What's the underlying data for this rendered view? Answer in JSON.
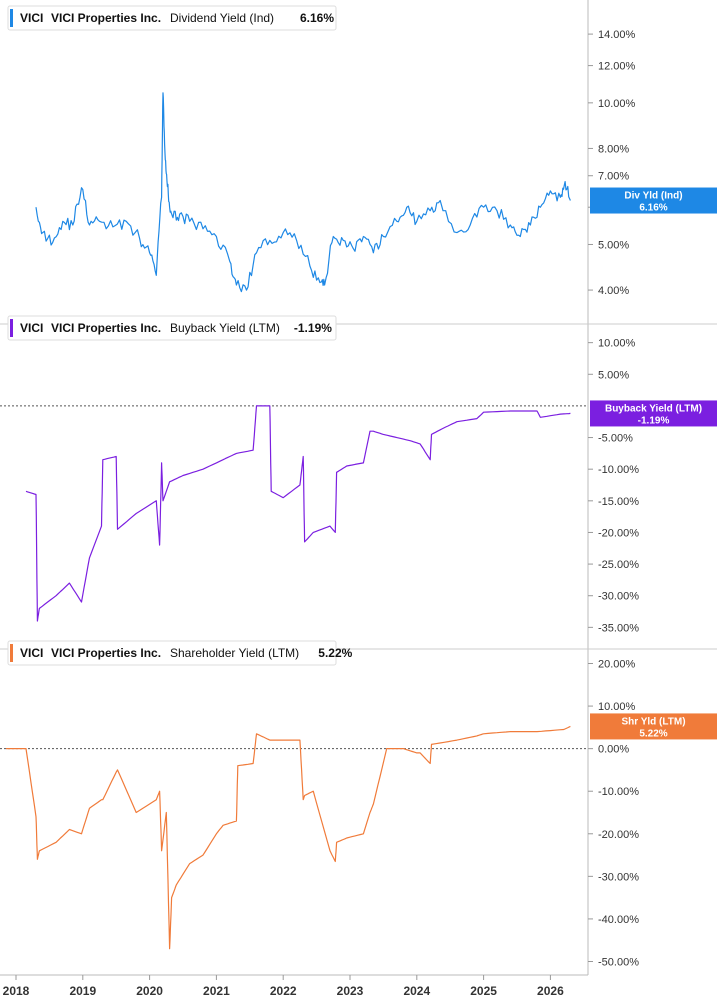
{
  "colors": {
    "div": "#1e88e5",
    "buyback": "#7b1fe0",
    "shareholder": "#f07b3a",
    "axis": "#bbbbbb"
  },
  "x_axis": {
    "labels": [
      "2018",
      "2019",
      "2020",
      "2021",
      "2022",
      "2023",
      "2024",
      "2025",
      "2026"
    ]
  },
  "chart_data": [
    {
      "type": "line",
      "ticker": "VICI",
      "company": "VICI Properties Inc.",
      "metric": "Dividend Yield (Ind)",
      "last_value": "6.16%",
      "badge": {
        "line1": "Div Yld (Ind)",
        "line2": "6.16%"
      },
      "scale": "log",
      "ylim": [
        3.7,
        15.0
      ],
      "yticks": [
        4,
        5,
        6,
        7,
        8,
        10,
        12,
        14
      ],
      "ytick_labels": [
        "4.00%",
        "5.00%",
        "6.00%",
        "7.00%",
        "8.00%",
        "10.00%",
        "12.00%",
        "14.00%"
      ],
      "series": [
        {
          "x": [
            2018.3,
            2018.4,
            2018.55,
            2018.7,
            2018.85,
            2018.98,
            2019.1,
            2019.25,
            2019.45,
            2019.65,
            2019.85,
            2020.0,
            2020.1,
            2020.18,
            2020.2,
            2020.23,
            2020.26,
            2020.3,
            2020.35,
            2020.45,
            2020.6,
            2020.8,
            2021.0,
            2021.2,
            2021.3,
            2021.45,
            2021.6,
            2021.8,
            2022.0,
            2022.2,
            2022.4,
            2022.55,
            2022.62,
            2022.75,
            2022.9,
            2023.05,
            2023.2,
            2023.35,
            2023.5,
            2023.7,
            2023.85,
            2024.0,
            2024.2,
            2024.35,
            2024.6,
            2024.8,
            2025.0,
            2025.2,
            2025.4,
            2025.55,
            2025.7,
            2025.85,
            2026.0,
            2026.15,
            2026.22,
            2026.3
          ],
          "y": [
            6.0,
            5.3,
            5.05,
            5.6,
            5.5,
            6.6,
            5.5,
            5.6,
            5.45,
            5.6,
            5.15,
            4.8,
            4.3,
            6.3,
            10.5,
            7.8,
            6.8,
            6.0,
            5.7,
            5.8,
            5.6,
            5.4,
            5.2,
            4.6,
            4.1,
            4.0,
            4.8,
            5.1,
            5.3,
            5.1,
            4.5,
            4.15,
            4.1,
            5.2,
            5.1,
            4.9,
            5.2,
            4.8,
            5.2,
            5.6,
            6.0,
            5.6,
            5.9,
            6.2,
            5.3,
            5.5,
            6.0,
            5.9,
            5.5,
            5.2,
            5.5,
            6.0,
            6.5,
            6.3,
            6.8,
            6.2
          ]
        }
      ]
    },
    {
      "type": "line",
      "ticker": "VICI",
      "company": "VICI Properties Inc.",
      "metric": "Buyback Yield (LTM)",
      "last_value": "-1.19%",
      "badge": {
        "line1": "Buyback Yield (LTM)",
        "line2": "-1.19%"
      },
      "scale": "linear",
      "ylim": [
        -37.0,
        12.0
      ],
      "yticks": [
        10,
        5,
        -5,
        -10,
        -15,
        -20,
        -25,
        -30,
        -35
      ],
      "ytick_labels": [
        "10.00%",
        "5.00%",
        "-5.00%",
        "-10.00%",
        "-15.00%",
        "-20.00%",
        "-25.00%",
        "-30.00%",
        "-35.00%"
      ],
      "reference_line": 0,
      "series": [
        {
          "x": [
            2018.15,
            2018.3,
            2018.32,
            2018.35,
            2018.6,
            2018.8,
            2018.98,
            2019.1,
            2019.28,
            2019.3,
            2019.5,
            2019.52,
            2019.8,
            2020.1,
            2020.15,
            2020.18,
            2020.2,
            2020.3,
            2020.5,
            2020.8,
            2021.1,
            2021.3,
            2021.55,
            2021.6,
            2021.8,
            2021.82,
            2022.0,
            2022.25,
            2022.3,
            2022.32,
            2022.45,
            2022.7,
            2022.78,
            2022.8,
            2022.95,
            2023.2,
            2023.3,
            2023.35,
            2023.5,
            2023.7,
            2023.9,
            2024.05,
            2024.2,
            2024.22,
            2024.4,
            2024.6,
            2024.9,
            2025.0,
            2025.4,
            2025.8,
            2025.85,
            2026.15,
            2026.3
          ],
          "y": [
            -13.5,
            -14.0,
            -34.0,
            -32.0,
            -30.0,
            -28.0,
            -31.0,
            -24.0,
            -19.0,
            -8.5,
            -8.0,
            -19.5,
            -17.0,
            -15.0,
            -22.0,
            -9.0,
            -15.0,
            -12.0,
            -11.0,
            -10.0,
            -8.5,
            -7.5,
            -7.0,
            0.0,
            0.0,
            -13.5,
            -14.5,
            -12.5,
            -8.0,
            -21.5,
            -20.0,
            -19.0,
            -20.0,
            -10.5,
            -9.5,
            -9.0,
            -4.0,
            -4.0,
            -4.5,
            -5.0,
            -5.5,
            -6.0,
            -8.5,
            -4.5,
            -3.5,
            -2.5,
            -2.0,
            -1.0,
            -0.8,
            -0.8,
            -1.8,
            -1.3,
            -1.19
          ]
        }
      ]
    },
    {
      "type": "line",
      "ticker": "VICI",
      "company": "VICI Properties Inc.",
      "metric": "Shareholder Yield (LTM)",
      "last_value": "5.22%",
      "badge": {
        "line1": "Shr Yld (LTM)",
        "line2": "5.22%"
      },
      "scale": "linear",
      "ylim": [
        -52.0,
        22.0
      ],
      "yticks": [
        20,
        10,
        0,
        -10,
        -20,
        -30,
        -40,
        -50
      ],
      "ytick_labels": [
        "20.00%",
        "10.00%",
        "0.00%",
        "-10.00%",
        "-20.00%",
        "-30.00%",
        "-40.00%",
        "-50.00%"
      ],
      "reference_line": 0,
      "series": [
        {
          "x": [
            2017.85,
            2018.15,
            2018.3,
            2018.32,
            2018.35,
            2018.6,
            2018.8,
            2018.98,
            2019.1,
            2019.28,
            2019.3,
            2019.5,
            2019.52,
            2019.8,
            2020.1,
            2020.15,
            2020.18,
            2020.25,
            2020.3,
            2020.33,
            2020.4,
            2020.6,
            2020.8,
            2021.0,
            2021.1,
            2021.3,
            2021.32,
            2021.55,
            2021.6,
            2021.8,
            2022.0,
            2022.25,
            2022.3,
            2022.32,
            2022.45,
            2022.7,
            2022.78,
            2022.8,
            2022.95,
            2023.2,
            2023.3,
            2023.35,
            2023.55,
            2023.8,
            2024.0,
            2024.05,
            2024.2,
            2024.22,
            2024.6,
            2024.9,
            2025.0,
            2025.4,
            2025.8,
            2026.2,
            2026.3
          ],
          "y": [
            0.0,
            0.0,
            -16.0,
            -26.0,
            -24.0,
            -22.0,
            -19.0,
            -20.0,
            -14.0,
            -12.0,
            -12.0,
            -5.5,
            -5.0,
            -15.0,
            -12.0,
            -10.0,
            -24.0,
            -15.0,
            -47.0,
            -35.0,
            -32.0,
            -27.0,
            -25.0,
            -20.0,
            -18.0,
            -17.0,
            -4.0,
            -3.5,
            3.5,
            2.0,
            2.0,
            2.0,
            -12.0,
            -11.0,
            -10.0,
            -24.0,
            -26.5,
            -22.0,
            -21.0,
            -20.0,
            -15.0,
            -13.0,
            0.0,
            0.0,
            -1.0,
            -1.0,
            -3.5,
            1.0,
            2.0,
            3.0,
            3.5,
            4.0,
            4.0,
            4.5,
            5.22
          ]
        }
      ]
    }
  ]
}
